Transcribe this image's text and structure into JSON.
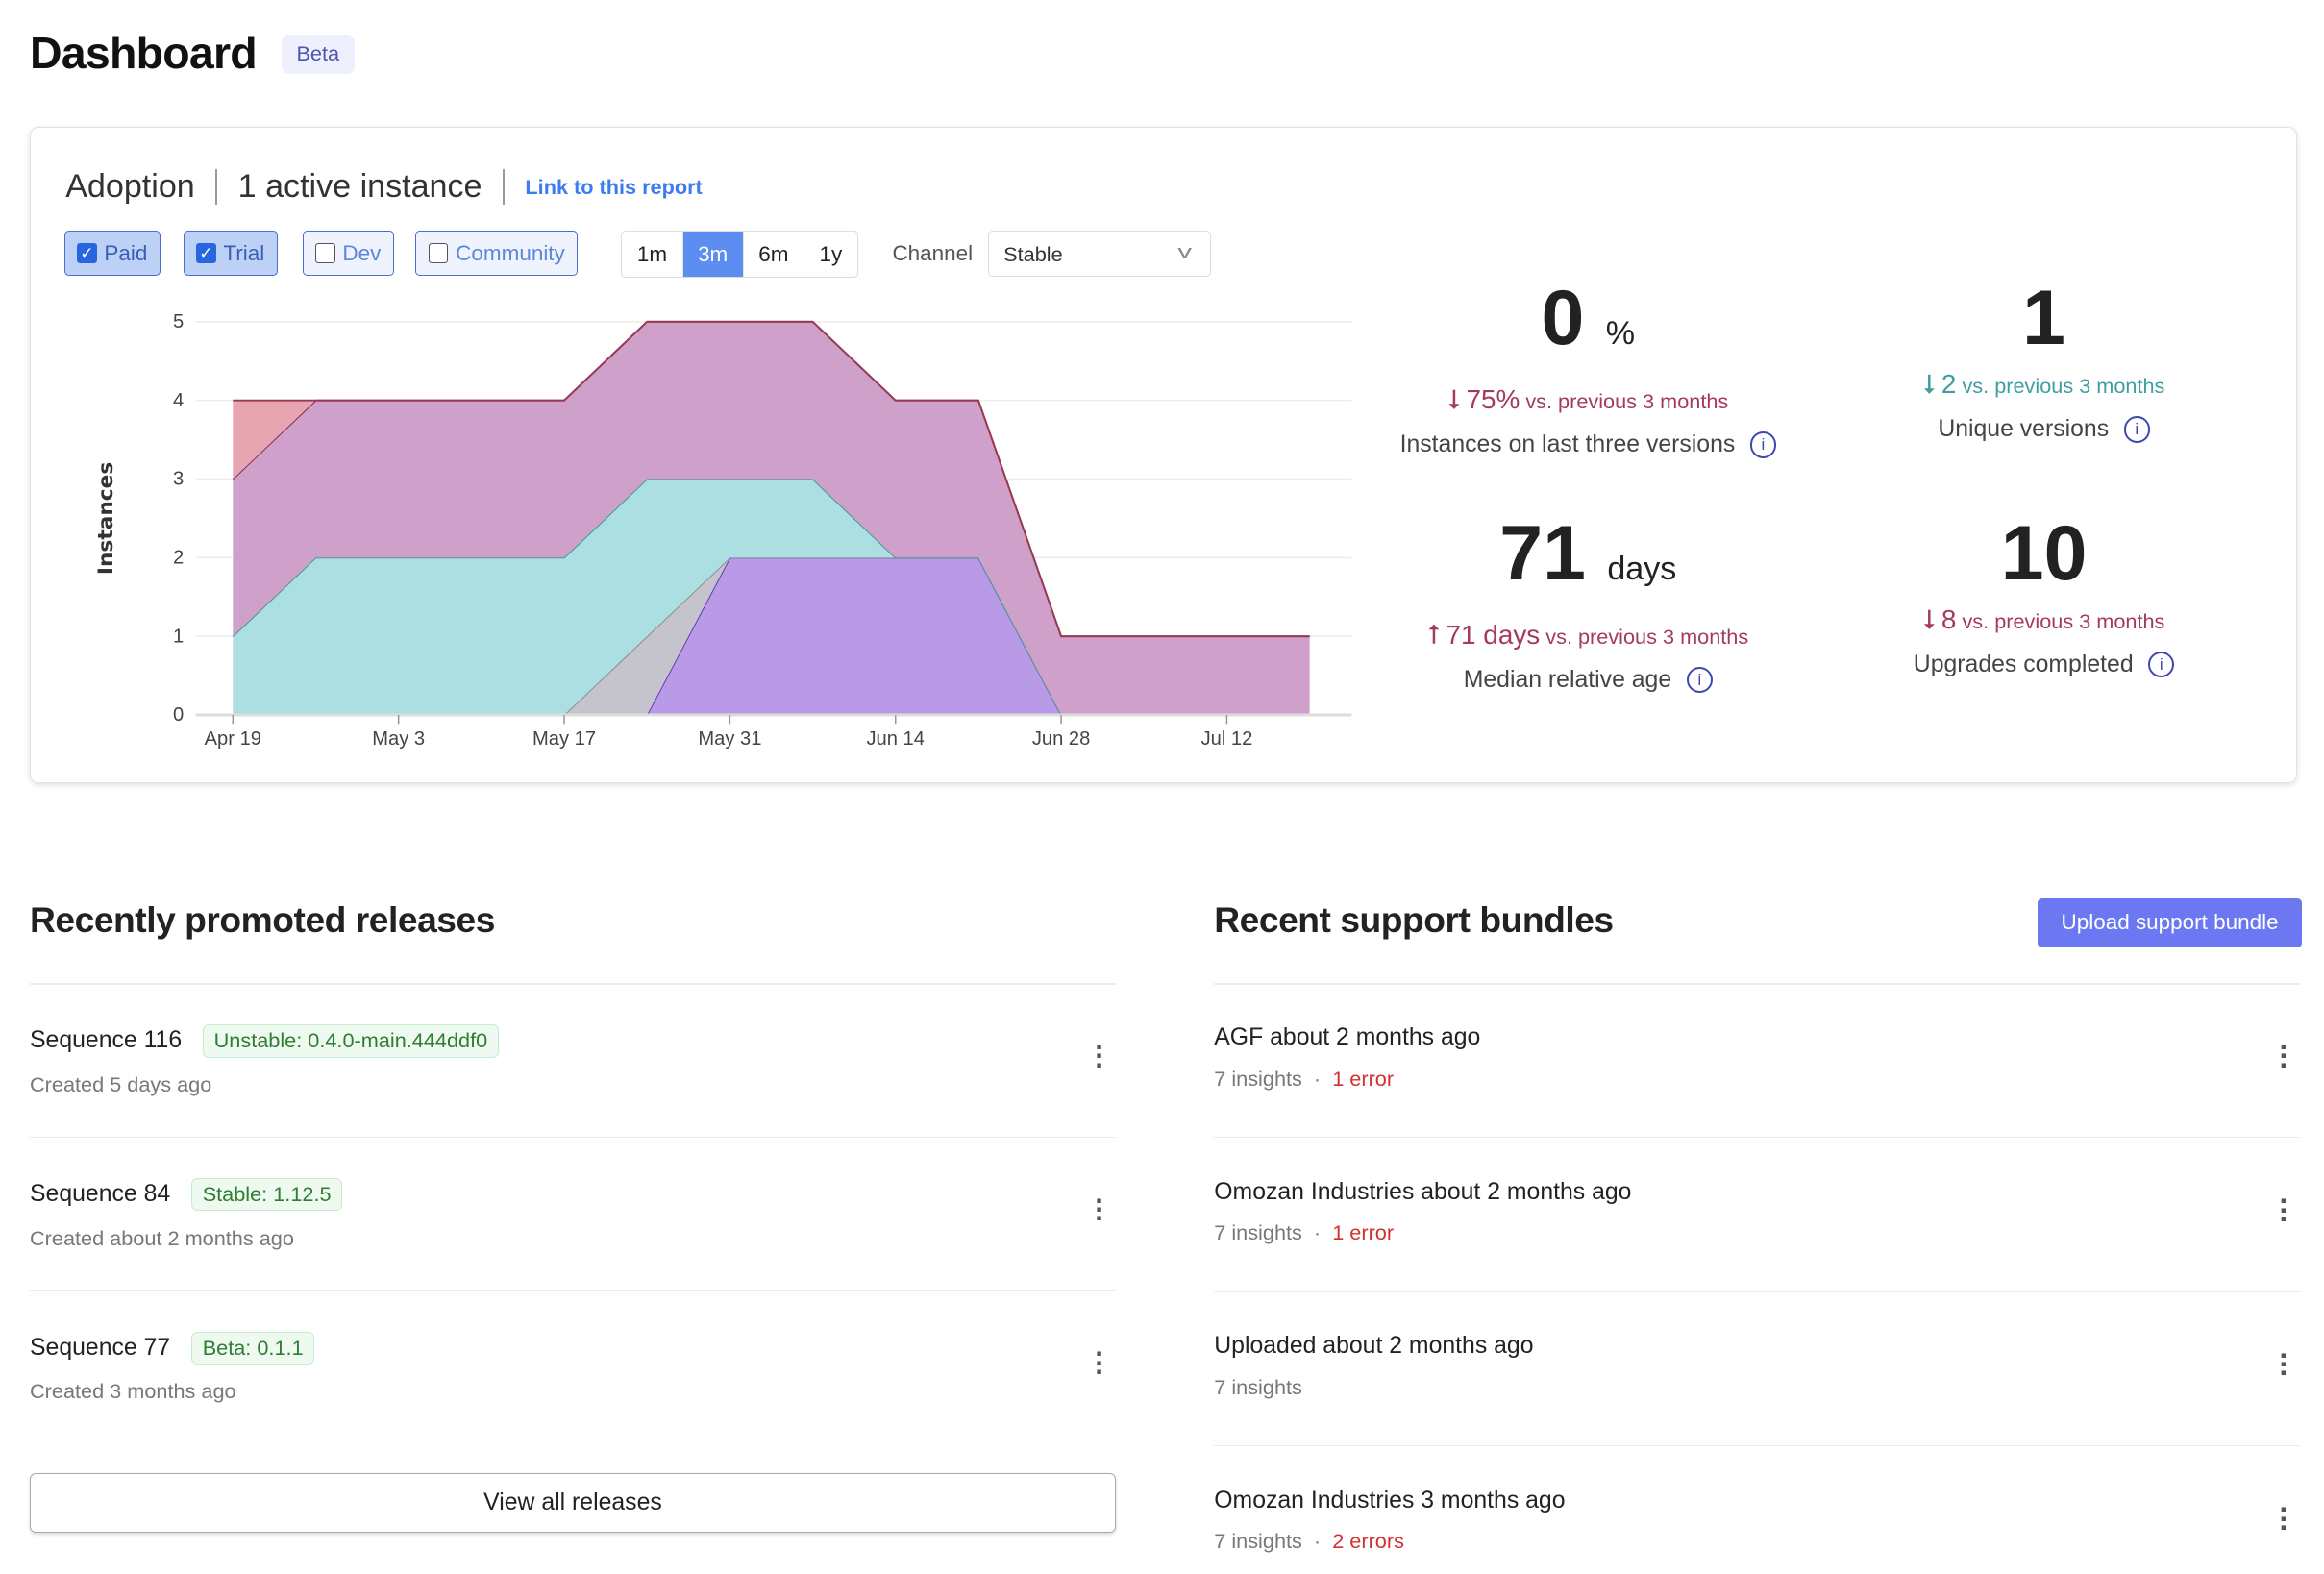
{
  "header": {
    "title": "Dashboard",
    "badge": "Beta"
  },
  "adoption": {
    "title": "Adoption",
    "active": "1 active instance",
    "link": "Link to this report",
    "filters": [
      {
        "label": "Paid",
        "checked": true
      },
      {
        "label": "Trial",
        "checked": true
      },
      {
        "label": "Dev",
        "checked": false
      },
      {
        "label": "Community",
        "checked": false
      }
    ],
    "ranges": [
      "1m",
      "3m",
      "6m",
      "1y"
    ],
    "active_range": "3m",
    "channel_label": "Channel",
    "channel_value": "Stable",
    "stats": [
      {
        "value": "0",
        "unit": "%",
        "delta_icon": "arrow-down-icon",
        "delta": "75%",
        "cmp": "vs. previous 3 months",
        "trend": "red",
        "label": "Instances on last three versions"
      },
      {
        "value": "1",
        "unit": "",
        "delta_icon": "arrow-down-icon",
        "delta": "2",
        "cmp": "vs. previous 3 months",
        "trend": "teal",
        "label": "Unique versions"
      },
      {
        "value": "71",
        "unit": "days",
        "delta_icon": "arrow-up-icon",
        "delta": "71 days",
        "cmp": "vs. previous 3 months",
        "trend": "red",
        "label": "Median relative age"
      },
      {
        "value": "10",
        "unit": "",
        "delta_icon": "arrow-down-icon",
        "delta": "8",
        "cmp": "vs. previous 3 months",
        "trend": "red",
        "label": "Upgrades completed"
      }
    ]
  },
  "chart_data": {
    "type": "area",
    "stacked": true,
    "ylabel": "Instances",
    "ylim": [
      0,
      5
    ],
    "yticks": [
      "0",
      "1",
      "2",
      "3",
      "4",
      "5"
    ],
    "xticks": [
      "Apr 19",
      "May 3",
      "May 17",
      "May 31",
      "Jun 14",
      "Jun 28",
      "Jul 12"
    ],
    "x": [
      "Apr 19",
      "Apr 26",
      "May 3",
      "May 10",
      "May 17",
      "May 24",
      "May 31",
      "Jun 7",
      "Jun 14",
      "Jun 21",
      "Jun 28",
      "Jul 5",
      "Jul 12",
      "Jul 19"
    ],
    "grid": true,
    "series": [
      {
        "values": [
          0,
          0,
          0,
          0,
          0,
          0,
          2,
          2,
          2,
          2,
          0,
          0,
          0,
          0
        ],
        "fill": "#b89ae6",
        "stroke": "#5b34a8"
      },
      {
        "values": [
          0,
          0,
          0,
          0,
          0,
          1,
          0,
          0,
          0,
          0,
          0,
          0,
          0,
          0
        ],
        "fill": "#c5c3cc",
        "stroke": "#8a8894"
      },
      {
        "values": [
          1,
          2,
          2,
          2,
          2,
          2,
          1,
          1,
          0,
          0,
          0,
          0,
          0,
          0
        ],
        "fill": "#acdfe2",
        "stroke": "#3a9598"
      },
      {
        "values": [
          2,
          2,
          2,
          2,
          2,
          2,
          2,
          2,
          2,
          2,
          1,
          1,
          1,
          1
        ],
        "fill": "#cfa0ca",
        "stroke": "#7d2850"
      },
      {
        "values": [
          1,
          0,
          0,
          0,
          0,
          0,
          0,
          0,
          0,
          0,
          0,
          0,
          0,
          0
        ],
        "fill": "#e6a5b0",
        "stroke": "#9a3a50"
      }
    ]
  },
  "releases": {
    "title": "Recently promoted releases",
    "items": [
      {
        "name": "Sequence 116",
        "tag": "Unstable: 0.4.0-main.444ddf0",
        "sub": "Created 5 days ago"
      },
      {
        "name": "Sequence 84",
        "tag": "Stable: 1.12.5",
        "sub": "Created about 2 months ago"
      },
      {
        "name": "Sequence 77",
        "tag": "Beta: 0.1.1",
        "sub": "Created 3 months ago"
      }
    ],
    "view_all": "View all releases"
  },
  "bundles": {
    "title": "Recent support bundles",
    "upload": "Upload support bundle",
    "items": [
      {
        "name": "AGF about 2 months ago",
        "insights": "7 insights",
        "errors": "1 error"
      },
      {
        "name": "Omozan Industries about 2 months ago",
        "insights": "7 insights",
        "errors": "1 error"
      },
      {
        "name": "Uploaded about 2 months ago",
        "insights": "7 insights",
        "errors": ""
      },
      {
        "name": "Omozan Industries 3 months ago",
        "insights": "7 insights",
        "errors": "2 errors"
      }
    ]
  }
}
